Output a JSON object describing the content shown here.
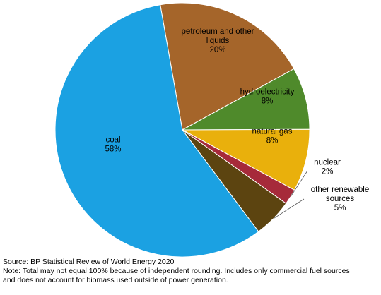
{
  "chart_data": {
    "type": "pie",
    "title": "",
    "slices": [
      {
        "label_lines": [
          "coal",
          "58%"
        ],
        "value": 58,
        "color": "#1ba1e2"
      },
      {
        "label_lines": [
          "petroleum and other",
          "liquids",
          "20%"
        ],
        "value": 20,
        "color": "#a5652a"
      },
      {
        "label_lines": [
          "hydroelectricity",
          "8%"
        ],
        "value": 8,
        "color": "#4f8a2b"
      },
      {
        "label_lines": [
          "natural gas",
          "8%"
        ],
        "value": 8,
        "color": "#e9b00c"
      },
      {
        "label_lines": [
          "nuclear",
          "2%"
        ],
        "value": 2,
        "color": "#a62a3a"
      },
      {
        "label_lines": [
          "other renewable",
          "sources",
          "5%"
        ],
        "value": 5,
        "color": "#5c4410"
      }
    ],
    "start": "coal slice begins at top, clockwise order: petroleum, hydro, natural gas, nuclear, other renewables, then coal"
  },
  "footer": {
    "source": "Source: BP Statistical Review of World Energy 2020",
    "note_line1": "Note: Total may not equal 100% because of independent rounding. Includes only commercial fuel sources",
    "note_line2": "and does not account for biomass used outside of power generation."
  }
}
